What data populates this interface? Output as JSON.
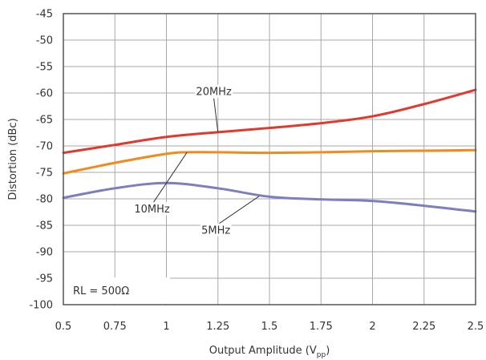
{
  "chart_data": {
    "type": "line",
    "title": "",
    "xlabel": "Output Amplitude (V",
    "xlabel_sub": "pp",
    "xlabel_end": ")",
    "ylabel": "Distortion (dBc)",
    "xlim": [
      0.5,
      2.5
    ],
    "ylim": [
      -100,
      -45
    ],
    "xticks": [
      0.5,
      0.75,
      1,
      1.25,
      1.5,
      1.75,
      2,
      2.25,
      2.5
    ],
    "xtick_labels": [
      "0.5",
      "0.75",
      "1",
      "1.25",
      "1.5",
      "1.75",
      "2",
      "2.25",
      "2.5"
    ],
    "yticks": [
      -45,
      -50,
      -55,
      -60,
      -65,
      -70,
      -75,
      -80,
      -85,
      -90,
      -95,
      -100
    ],
    "ytick_labels": [
      "-45",
      "-50",
      "-55",
      "-60",
      "-65",
      "-70",
      "-75",
      "-80",
      "-85",
      "-90",
      "-95",
      "-100"
    ],
    "grid": true,
    "series": [
      {
        "name": "20MHz",
        "color": "#e03a2f",
        "x": [
          0.5,
          0.75,
          1.0,
          1.25,
          1.5,
          1.75,
          2.0,
          2.25,
          2.5
        ],
        "y": [
          -71.3,
          -69.8,
          -68.3,
          -67.4,
          -66.6,
          -65.7,
          -64.4,
          -62.1,
          -59.4
        ]
      },
      {
        "name": "10MHz",
        "color": "#f28a1c",
        "x": [
          0.5,
          0.75,
          1.0,
          1.1,
          1.25,
          1.5,
          1.75,
          2.0,
          2.25,
          2.5
        ],
        "y": [
          -75.2,
          -73.2,
          -71.5,
          -71.2,
          -71.2,
          -71.3,
          -71.2,
          -71.0,
          -70.9,
          -70.8
        ]
      },
      {
        "name": "5MHz",
        "color": "#7b7fc0",
        "x": [
          0.5,
          0.75,
          1.0,
          1.25,
          1.5,
          1.75,
          2.0,
          2.25,
          2.5
        ],
        "y": [
          -79.8,
          -78.0,
          -77.0,
          -78.0,
          -79.6,
          -80.1,
          -80.4,
          -81.3,
          -82.4
        ]
      }
    ],
    "annotations": [
      {
        "text": "20MHz",
        "series": 0,
        "text_x": 1.23,
        "text_y": -60.1,
        "point_x": 1.25,
        "point_y": -67.4
      },
      {
        "text": "10MHz",
        "series": 1,
        "text_x": 0.93,
        "text_y": -82.3,
        "point_x": 1.1,
        "point_y": -71.2
      },
      {
        "text": "5MHz",
        "series": 2,
        "text_x": 1.24,
        "text_y": -86.3,
        "point_x": 1.45,
        "point_y": -79.5
      }
    ],
    "note": "RL = 500Ω"
  }
}
